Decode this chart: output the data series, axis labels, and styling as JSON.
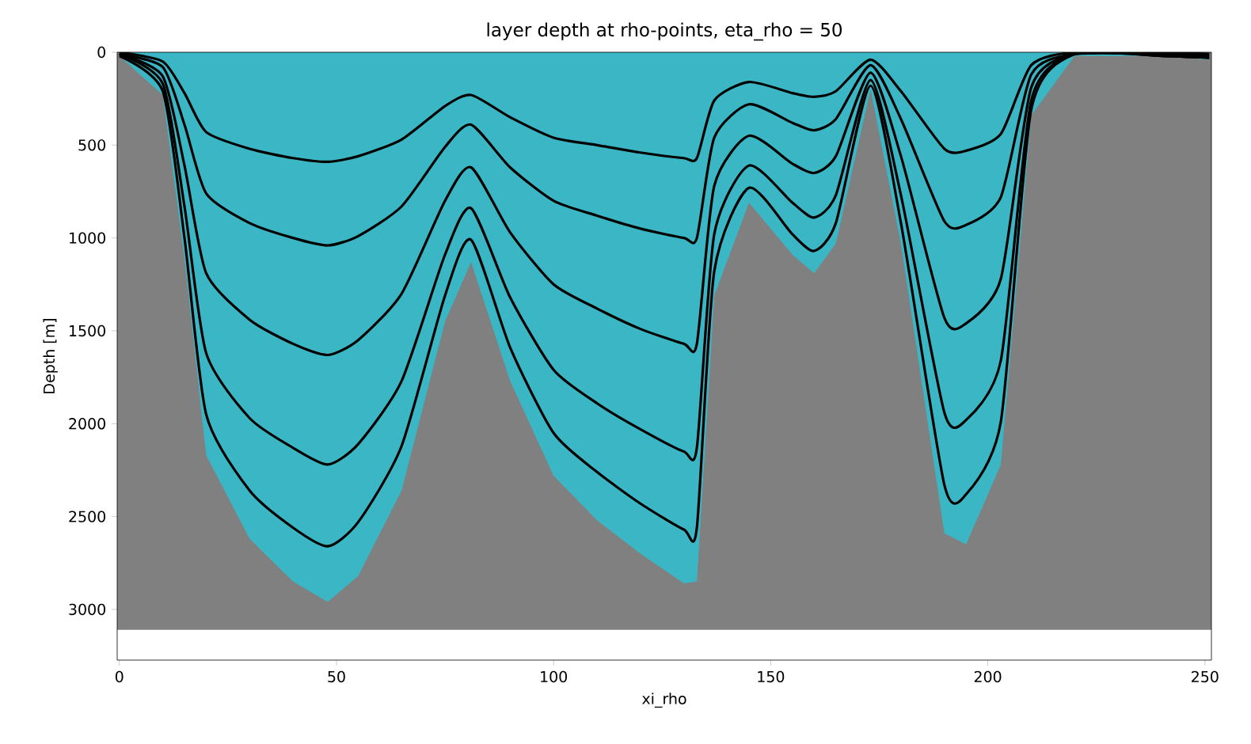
{
  "chart_data": {
    "type": "area",
    "title": "layer depth at rho-points, eta_rho = 50",
    "xlabel": "xi_rho",
    "ylabel": "Depth [m]",
    "xlim": [
      -0.5,
      251.5
    ],
    "ylim": [
      3273,
      0
    ],
    "xticks": [
      0,
      50,
      100,
      150,
      200,
      250
    ],
    "yticks": [
      0,
      500,
      1000,
      1500,
      2000,
      2500,
      3000
    ],
    "grid": false,
    "bands": [
      {
        "axis": "y",
        "from": 0,
        "to": 3110,
        "color": "#808080"
      }
    ],
    "x": [
      0,
      10,
      15,
      20,
      30,
      40,
      48,
      55,
      65,
      75,
      81,
      90,
      100,
      110,
      120,
      130,
      133,
      137,
      145,
      155,
      160,
      165,
      173,
      180,
      190,
      195,
      203,
      210,
      220,
      240,
      251
    ],
    "series": [
      {
        "color": "#3bb6c4",
        "values": [
          20,
          230,
          1110,
          2170,
          2620,
          2850,
          2960,
          2820,
          2360,
          1450,
          1130,
          1770,
          2280,
          2520,
          2700,
          2860,
          2850,
          1310,
          810,
          1090,
          1190,
          1030,
          200,
          1030,
          2590,
          2650,
          2220,
          340,
          20,
          20,
          40
        ]
      },
      {
        "type": "line",
        "color": "#000000",
        "values": [
          20,
          210,
          1000,
          1950,
          2360,
          2560,
          2660,
          2530,
          2120,
          1310,
          1010,
          1590,
          2050,
          2260,
          2430,
          2570,
          2560,
          1180,
          730,
          980,
          1070,
          920,
          180,
          920,
          2330,
          2380,
          1990,
          310,
          10,
          20,
          30
        ]
      },
      {
        "type": "line",
        "color": "#000000",
        "values": [
          10,
          170,
          830,
          1620,
          1970,
          2130,
          2220,
          2110,
          1770,
          1090,
          840,
          1320,
          1710,
          1890,
          2030,
          2150,
          2130,
          980,
          610,
          810,
          890,
          770,
          150,
          770,
          1940,
          1980,
          1660,
          260,
          10,
          20,
          30
        ]
      },
      {
        "type": "line",
        "color": "#000000",
        "values": [
          10,
          130,
          610,
          1190,
          1440,
          1570,
          1630,
          1550,
          1300,
          800,
          620,
          970,
          1250,
          1380,
          1490,
          1570,
          1570,
          720,
          450,
          600,
          650,
          560,
          110,
          560,
          1430,
          1460,
          1220,
          190,
          10,
          10,
          20
        ]
      },
      {
        "type": "line",
        "color": "#000000",
        "values": [
          10,
          80,
          390,
          760,
          920,
          1000,
          1040,
          990,
          830,
          510,
          390,
          620,
          800,
          880,
          950,
          1000,
          1000,
          460,
          280,
          380,
          420,
          360,
          70,
          360,
          910,
          930,
          780,
          120,
          10,
          10,
          10
        ]
      },
      {
        "type": "line",
        "color": "#000000",
        "values": [
          0,
          50,
          220,
          430,
          520,
          570,
          590,
          560,
          470,
          290,
          230,
          350,
          460,
          500,
          540,
          570,
          570,
          260,
          160,
          220,
          240,
          210,
          40,
          210,
          520,
          530,
          440,
          70,
          0,
          0,
          10
        ]
      }
    ]
  }
}
